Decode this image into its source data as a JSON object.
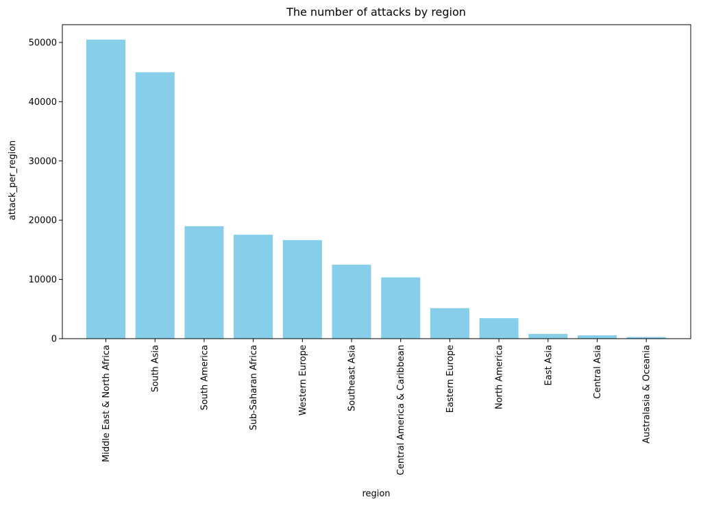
{
  "chart_data": {
    "type": "bar",
    "title": "The number of attacks by region",
    "xlabel": "region",
    "ylabel": "attack_per_region",
    "categories": [
      "Middle East & North Africa",
      "South Asia",
      "South America",
      "Sub-Saharan Africa",
      "Western Europe",
      "Southeast Asia",
      "Central America & Caribbean",
      "Eastern Europe",
      "North America",
      "East Asia",
      "Central Asia",
      "Australasia & Oceania"
    ],
    "values": [
      50474,
      44974,
      18978,
      17550,
      16639,
      12485,
      10344,
      5144,
      3456,
      802,
      563,
      282
    ],
    "ylim": [
      0,
      53000
    ],
    "yticks": [
      0,
      10000,
      20000,
      30000,
      40000,
      50000
    ],
    "bar_color": "#87ceeb",
    "grid": false,
    "legend": "none"
  }
}
